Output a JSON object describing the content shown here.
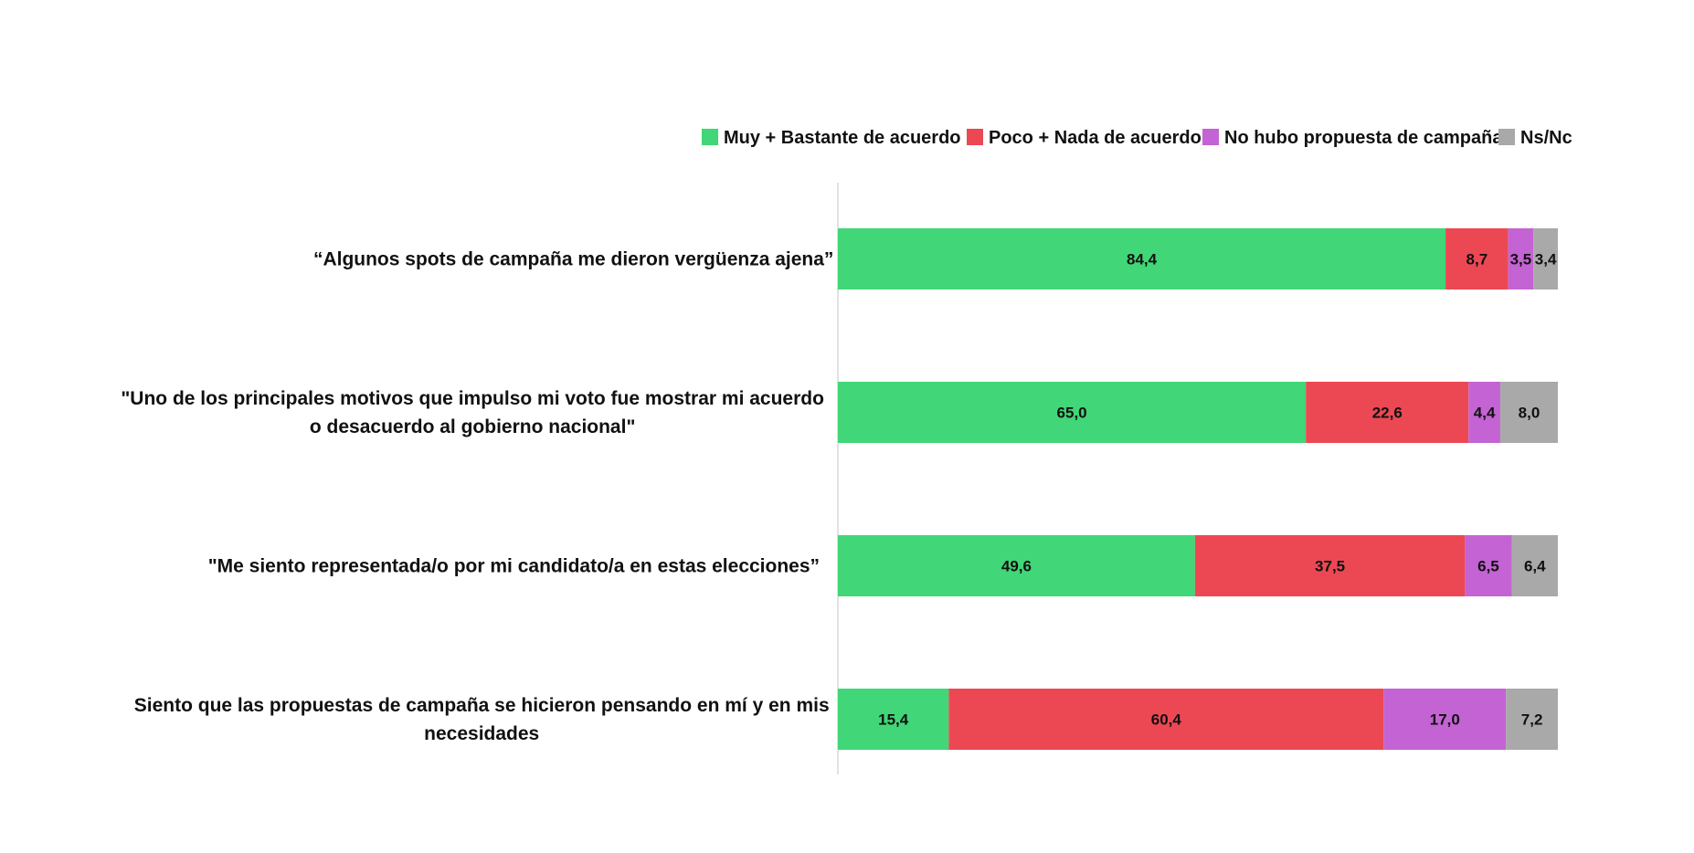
{
  "chart_data": {
    "type": "bar",
    "orientation": "horizontal",
    "stacked": true,
    "percent_stacked": true,
    "title": "",
    "xlabel": "",
    "ylabel": "",
    "xlim": [
      0,
      100
    ],
    "grid": false,
    "legend_position": "top-right",
    "categories": [
      [
        "“Algunos spots de campaña me dieron vergüenza ajena”"
      ],
      [
        "\"Uno de los principales motivos que impulso mi voto fue mostrar mi acuerdo",
        "o desacuerdo al gobierno nacional\""
      ],
      [
        "\"Me siento representada/o por mi candidato/a en estas elecciones”"
      ],
      [
        "Siento que las propuestas de campaña se hicieron pensando en mí y en mis",
        "necesidades"
      ]
    ],
    "series": [
      {
        "name": "Muy + Bastante de acuerdo",
        "color": "#41d677",
        "values": [
          84.4,
          65.0,
          49.6,
          15.4
        ],
        "labels": [
          "84,4",
          "65,0",
          "49,6",
          "15,4"
        ]
      },
      {
        "name": "Poco + Nada de acuerdo",
        "color": "#ec4853",
        "values": [
          8.7,
          22.6,
          37.5,
          60.4
        ],
        "labels": [
          "8,7",
          "22,6",
          "37,5",
          "60,4"
        ]
      },
      {
        "name": "No hubo propuesta de campaña",
        "color": "#c463d3",
        "values": [
          3.5,
          4.4,
          6.5,
          17.0
        ],
        "labels": [
          "3,5",
          "4,4",
          "6,5",
          "17,0"
        ]
      },
      {
        "name": "Ns/Nc",
        "color": "#a9a9a9",
        "values": [
          3.4,
          8.0,
          6.4,
          7.2
        ],
        "labels": [
          "3,4",
          "8,0",
          "6,4",
          "7,2"
        ]
      }
    ]
  }
}
